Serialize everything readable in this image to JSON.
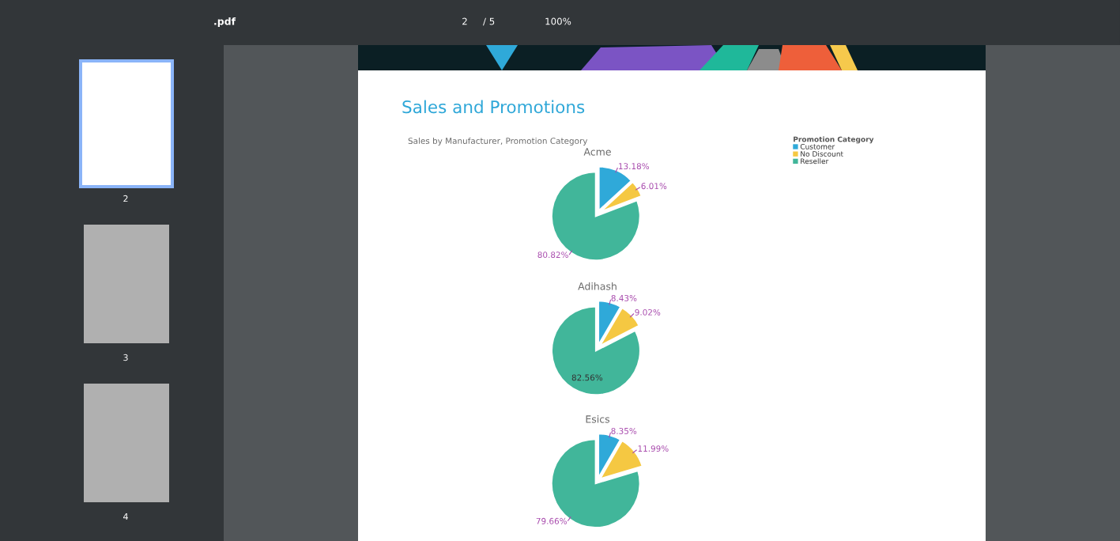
{
  "chart_data": [
    {
      "type": "pie",
      "title": "Acme",
      "categories": [
        "Customer",
        "No Discount",
        "Reseller"
      ],
      "values": [
        13.18,
        6.01,
        80.82
      ],
      "colors": [
        "#2fa9d9",
        "#f5c842",
        "#41b69a"
      ],
      "value_labels": [
        "13.18%",
        "6.01%",
        "80.82%"
      ],
      "legend": "top right",
      "legend_title": "Promotion Category",
      "annotations": [
        "Sales and Promotions",
        "Sales by Manufacturer, Promotion Category",
        ".pdf",
        "2",
        "/ 5",
        "100%",
        "2",
        "3",
        "4"
      ]
    },
    {
      "type": "pie",
      "title": "Adihash",
      "categories": [
        null,
        null,
        null
      ],
      "values": [
        8.43,
        9.02,
        82.56
      ],
      "colors": [
        "#2fa9d9",
        "#f5c842",
        "#41b69a"
      ],
      "value_labels": [
        "8.43%",
        "9.02%",
        "82.56%"
      ]
    },
    {
      "type": "pie",
      "title": "Esics",
      "categories": [
        null,
        null,
        null
      ],
      "values": [
        8.35,
        11.99,
        79.66
      ],
      "colors": [
        "#2fa9d9",
        "#f5c842",
        "#41b69a"
      ],
      "value_labels": [
        "8.35%",
        "11.99%",
        "79.66%"
      ]
    }
  ]
}
